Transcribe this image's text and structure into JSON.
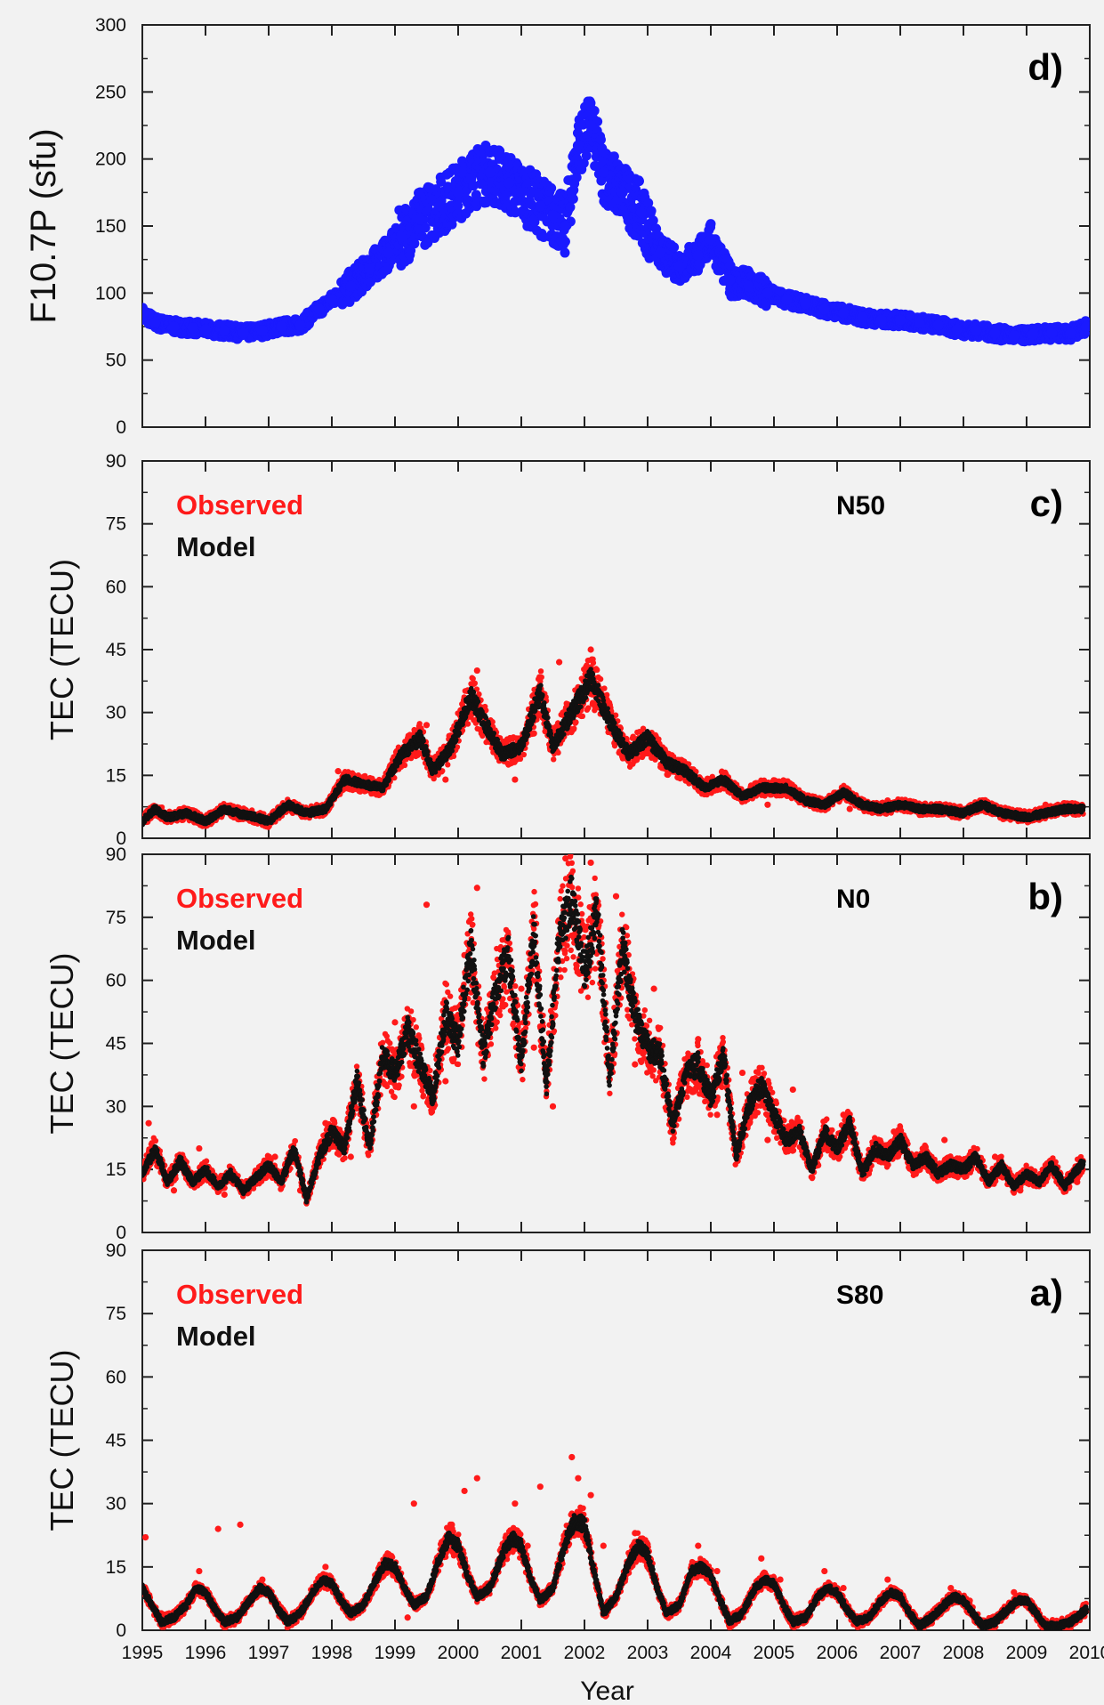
{
  "chart_data": [
    {
      "type": "scatter",
      "panel_label": "d)",
      "ylabel": "F10.7P (sfu)",
      "xlim": [
        1995,
        2010
      ],
      "ylim": [
        0,
        300
      ],
      "yticks": [
        "0",
        "50",
        "100",
        "150",
        "200",
        "250",
        "300"
      ],
      "colors": {
        "f107": "#1a1aff"
      },
      "series": [
        {
          "key": "f107",
          "x": [
            1995.0,
            1995.2,
            1995.5,
            1995.8,
            1996.0,
            1996.3,
            1996.6,
            1996.9,
            1997.2,
            1997.5,
            1997.8,
            1998.0,
            1998.3,
            1998.6,
            1998.9,
            1999.1,
            1999.4,
            1999.7,
            2000.0,
            2000.2,
            2000.5,
            2000.8,
            2001.0,
            2001.3,
            2001.5,
            2001.7,
            2001.9,
            2002.1,
            2002.3,
            2002.6,
            2002.9,
            2003.2,
            2003.5,
            2003.8,
            2004.0,
            2004.3,
            2004.6,
            2004.9,
            2005.2,
            2005.5,
            2005.8,
            2006.1,
            2006.4,
            2006.7,
            2007.0,
            2007.3,
            2007.6,
            2007.9,
            2008.2,
            2008.5,
            2008.8,
            2009.1,
            2009.4,
            2009.7,
            2009.95
          ],
          "y": [
            85,
            78,
            75,
            74,
            73,
            72,
            70,
            72,
            75,
            76,
            88,
            95,
            105,
            118,
            130,
            142,
            155,
            165,
            175,
            185,
            190,
            182,
            175,
            165,
            158,
            150,
            210,
            225,
            190,
            175,
            160,
            130,
            120,
            128,
            140,
            110,
            105,
            100,
            95,
            92,
            88,
            85,
            82,
            80,
            80,
            78,
            76,
            73,
            72,
            70,
            68,
            69,
            70,
            70,
            75
          ]
        }
      ]
    },
    {
      "type": "scatter",
      "panel_label": "c)",
      "station": "N50",
      "ylabel": "TEC (TECU)",
      "legend": [
        "Observed",
        "Model"
      ],
      "xlim": [
        1995,
        2010
      ],
      "ylim": [
        0,
        90
      ],
      "yticks": [
        "0",
        "15",
        "30",
        "45",
        "60",
        "75",
        "90"
      ],
      "colors": {
        "observed": "#ff1a1a",
        "model": "#111111"
      },
      "series": [
        {
          "key": "model",
          "x": [
            1995.0,
            1995.2,
            1995.4,
            1995.7,
            1996.0,
            1996.3,
            1996.5,
            1996.8,
            1997.0,
            1997.3,
            1997.6,
            1997.9,
            1998.2,
            1998.5,
            1998.8,
            1999.1,
            1999.4,
            1999.6,
            1999.9,
            2000.2,
            2000.4,
            2000.7,
            2001.0,
            2001.3,
            2001.5,
            2001.8,
            2002.1,
            2002.4,
            2002.7,
            2003.0,
            2003.3,
            2003.6,
            2003.9,
            2004.2,
            2004.5,
            2004.8,
            2005.2,
            2005.5,
            2005.8,
            2006.1,
            2006.4,
            2006.7,
            2007.0,
            2007.3,
            2007.6,
            2008.0,
            2008.3,
            2008.6,
            2009.0,
            2009.3,
            2009.6,
            2009.9
          ],
          "y": [
            4,
            7,
            5,
            6,
            4,
            7,
            6,
            5,
            4,
            8,
            6,
            7,
            14,
            13,
            12,
            20,
            24,
            16,
            22,
            34,
            28,
            20,
            22,
            35,
            22,
            30,
            38,
            28,
            20,
            24,
            18,
            16,
            12,
            14,
            10,
            12,
            12,
            9,
            8,
            11,
            8,
            7,
            8,
            7,
            7,
            6,
            8,
            6,
            5,
            6,
            7,
            7
          ]
        },
        {
          "key": "observed",
          "x": [
            1995.1,
            1995.5,
            1996.1,
            1996.6,
            1997.1,
            1997.7,
            1998.1,
            1998.6,
            1999.0,
            1999.5,
            1999.8,
            2000.1,
            2000.3,
            2000.6,
            2000.9,
            2001.2,
            2001.6,
            2001.9,
            2002.1,
            2002.3,
            2002.6,
            2003.0,
            2003.4,
            2003.8,
            2004.3,
            2004.9,
            2005.5,
            2006.2,
            2006.8,
            2007.4,
            2008.1,
            2008.7,
            2009.3,
            2009.8
          ],
          "y": [
            5,
            6,
            5,
            6,
            5,
            7,
            16,
            12,
            18,
            27,
            14,
            30,
            40,
            22,
            14,
            25,
            42,
            36,
            45,
            34,
            24,
            21,
            16,
            13,
            12,
            8,
            10,
            7,
            9,
            6,
            7,
            5,
            8,
            6
          ]
        }
      ]
    },
    {
      "type": "scatter",
      "panel_label": "b)",
      "station": "N0",
      "ylabel": "TEC (TECU)",
      "legend": [
        "Observed",
        "Model"
      ],
      "xlim": [
        1995,
        2010
      ],
      "ylim": [
        0,
        90
      ],
      "yticks": [
        "0",
        "15",
        "30",
        "45",
        "60",
        "75",
        "90"
      ],
      "colors": {
        "observed": "#ff1a1a",
        "model": "#111111"
      },
      "series": [
        {
          "key": "model",
          "x": [
            1995.0,
            1995.2,
            1995.4,
            1995.6,
            1995.8,
            1996.0,
            1996.2,
            1996.4,
            1996.6,
            1996.8,
            1997.0,
            1997.2,
            1997.4,
            1997.6,
            1997.8,
            1998.0,
            1998.2,
            1998.4,
            1998.6,
            1998.8,
            1999.0,
            1999.2,
            1999.4,
            1999.6,
            1999.8,
            2000.0,
            2000.2,
            2000.4,
            2000.6,
            2000.8,
            2001.0,
            2001.2,
            2001.4,
            2001.6,
            2001.8,
            2002.0,
            2002.2,
            2002.4,
            2002.6,
            2002.8,
            2003.0,
            2003.2,
            2003.4,
            2003.6,
            2003.8,
            2004.0,
            2004.2,
            2004.4,
            2004.6,
            2004.8,
            2005.0,
            2005.2,
            2005.4,
            2005.6,
            2005.8,
            2006.0,
            2006.2,
            2006.4,
            2006.6,
            2006.8,
            2007.0,
            2007.2,
            2007.4,
            2007.6,
            2007.8,
            2008.0,
            2008.2,
            2008.4,
            2008.6,
            2008.8,
            2009.0,
            2009.2,
            2009.4,
            2009.6,
            2009.9
          ],
          "y": [
            14,
            20,
            12,
            17,
            12,
            15,
            11,
            14,
            10,
            13,
            16,
            12,
            20,
            8,
            18,
            24,
            20,
            36,
            20,
            42,
            38,
            48,
            40,
            32,
            52,
            45,
            68,
            42,
            58,
            66,
            40,
            72,
            35,
            70,
            80,
            62,
            76,
            36,
            68,
            52,
            44,
            42,
            25,
            38,
            40,
            32,
            42,
            18,
            30,
            35,
            28,
            22,
            24,
            15,
            24,
            20,
            26,
            14,
            20,
            18,
            22,
            16,
            18,
            14,
            16,
            15,
            18,
            12,
            16,
            11,
            14,
            12,
            16,
            11,
            17
          ]
        },
        {
          "key": "observed",
          "x": [
            1995.1,
            1995.5,
            1995.9,
            1996.3,
            1996.7,
            1997.1,
            1997.5,
            1997.9,
            1998.3,
            1998.7,
            1999.0,
            1999.3,
            1999.5,
            1999.8,
            2000.1,
            2000.3,
            2000.5,
            2000.7,
            2001.0,
            2001.2,
            2001.5,
            2001.7,
            2001.85,
            2002.1,
            2002.3,
            2002.5,
            2002.8,
            2003.1,
            2003.4,
            2003.8,
            2004.1,
            2004.5,
            2004.9,
            2005.3,
            2005.7,
            2006.1,
            2006.5,
            2006.9,
            2007.3,
            2007.7,
            2008.1,
            2008.5,
            2008.9,
            2009.3,
            2009.8
          ],
          "y": [
            26,
            10,
            20,
            9,
            12,
            18,
            10,
            26,
            18,
            28,
            50,
            30,
            78,
            36,
            66,
            82,
            48,
            62,
            58,
            44,
            30,
            89,
            74,
            88,
            60,
            80,
            40,
            58,
            30,
            46,
            28,
            38,
            22,
            34,
            16,
            28,
            14,
            24,
            18,
            22,
            15,
            18,
            10,
            16,
            12
          ]
        }
      ]
    },
    {
      "type": "scatter",
      "panel_label": "a)",
      "station": "S80",
      "ylabel": "TEC (TECU)",
      "xlabel": "Year",
      "legend": [
        "Observed",
        "Model"
      ],
      "xlim": [
        1995,
        2010
      ],
      "ylim": [
        0,
        90
      ],
      "yticks": [
        "0",
        "15",
        "30",
        "45",
        "60",
        "75",
        "90"
      ],
      "xticks": [
        "1995",
        "1996",
        "1997",
        "1998",
        "1999",
        "2000",
        "2001",
        "2002",
        "2003",
        "2004",
        "2005",
        "2006",
        "2007",
        "2008",
        "2009",
        "2010"
      ],
      "colors": {
        "observed": "#ff1a1a",
        "model": "#111111"
      },
      "series": [
        {
          "key": "model",
          "x": [
            1995.0,
            1995.15,
            1995.3,
            1995.5,
            1995.7,
            1995.85,
            1996.0,
            1996.15,
            1996.3,
            1996.5,
            1996.7,
            1996.85,
            1997.0,
            1997.15,
            1997.3,
            1997.5,
            1997.7,
            1997.85,
            1998.0,
            1998.15,
            1998.3,
            1998.5,
            1998.7,
            1998.85,
            1999.0,
            1999.15,
            1999.3,
            1999.5,
            1999.7,
            1999.85,
            2000.0,
            2000.15,
            2000.3,
            2000.5,
            2000.7,
            2000.85,
            2001.0,
            2001.15,
            2001.3,
            2001.5,
            2001.7,
            2001.85,
            2002.0,
            2002.15,
            2002.3,
            2002.5,
            2002.7,
            2002.85,
            2003.0,
            2003.15,
            2003.3,
            2003.5,
            2003.7,
            2003.85,
            2004.0,
            2004.15,
            2004.3,
            2004.5,
            2004.7,
            2004.85,
            2005.0,
            2005.15,
            2005.3,
            2005.5,
            2005.7,
            2005.85,
            2006.0,
            2006.15,
            2006.3,
            2006.5,
            2006.7,
            2006.85,
            2007.0,
            2007.15,
            2007.3,
            2007.5,
            2007.7,
            2007.85,
            2008.0,
            2008.15,
            2008.3,
            2008.5,
            2008.7,
            2008.85,
            2009.0,
            2009.15,
            2009.3,
            2009.5,
            2009.7,
            2009.95
          ],
          "y": [
            10,
            6,
            2,
            3,
            6,
            10,
            9,
            5,
            2,
            3,
            7,
            10,
            9,
            5,
            2,
            4,
            9,
            12,
            11,
            7,
            4,
            6,
            12,
            16,
            15,
            10,
            6,
            8,
            17,
            22,
            20,
            13,
            8,
            10,
            18,
            22,
            20,
            12,
            7,
            10,
            21,
            26,
            25,
            14,
            4,
            8,
            16,
            20,
            18,
            10,
            4,
            6,
            14,
            15,
            13,
            7,
            2,
            4,
            10,
            12,
            11,
            6,
            2,
            3,
            8,
            10,
            9,
            5,
            2,
            3,
            7,
            9,
            8,
            4,
            1,
            3,
            6,
            8,
            7,
            4,
            1,
            2,
            5,
            7,
            7,
            4,
            1,
            1,
            2,
            5
          ]
        },
        {
          "key": "observed",
          "x": [
            1995.05,
            1995.3,
            1995.9,
            1996.2,
            1996.55,
            1996.9,
            1997.2,
            1997.9,
            1998.2,
            1998.9,
            1999.2,
            1999.3,
            1999.9,
            2000.1,
            2000.3,
            2000.9,
            2001.1,
            2001.3,
            2001.8,
            2001.9,
            2002.1,
            2002.3,
            2002.8,
            2003.0,
            2003.3,
            2003.8,
            2004.1,
            2004.8,
            2005.1,
            2005.8,
            2006.1,
            2006.8,
            2007.0,
            2007.8,
            2008.1,
            2008.8,
            2009.1,
            2009.9
          ],
          "y": [
            22,
            4,
            14,
            24,
            25,
            12,
            3,
            15,
            5,
            18,
            3,
            30,
            25,
            33,
            36,
            30,
            20,
            34,
            41,
            36,
            32,
            20,
            23,
            15,
            5,
            20,
            14,
            17,
            12,
            14,
            10,
            12,
            9,
            10,
            7,
            9,
            6,
            6
          ]
        }
      ]
    }
  ]
}
